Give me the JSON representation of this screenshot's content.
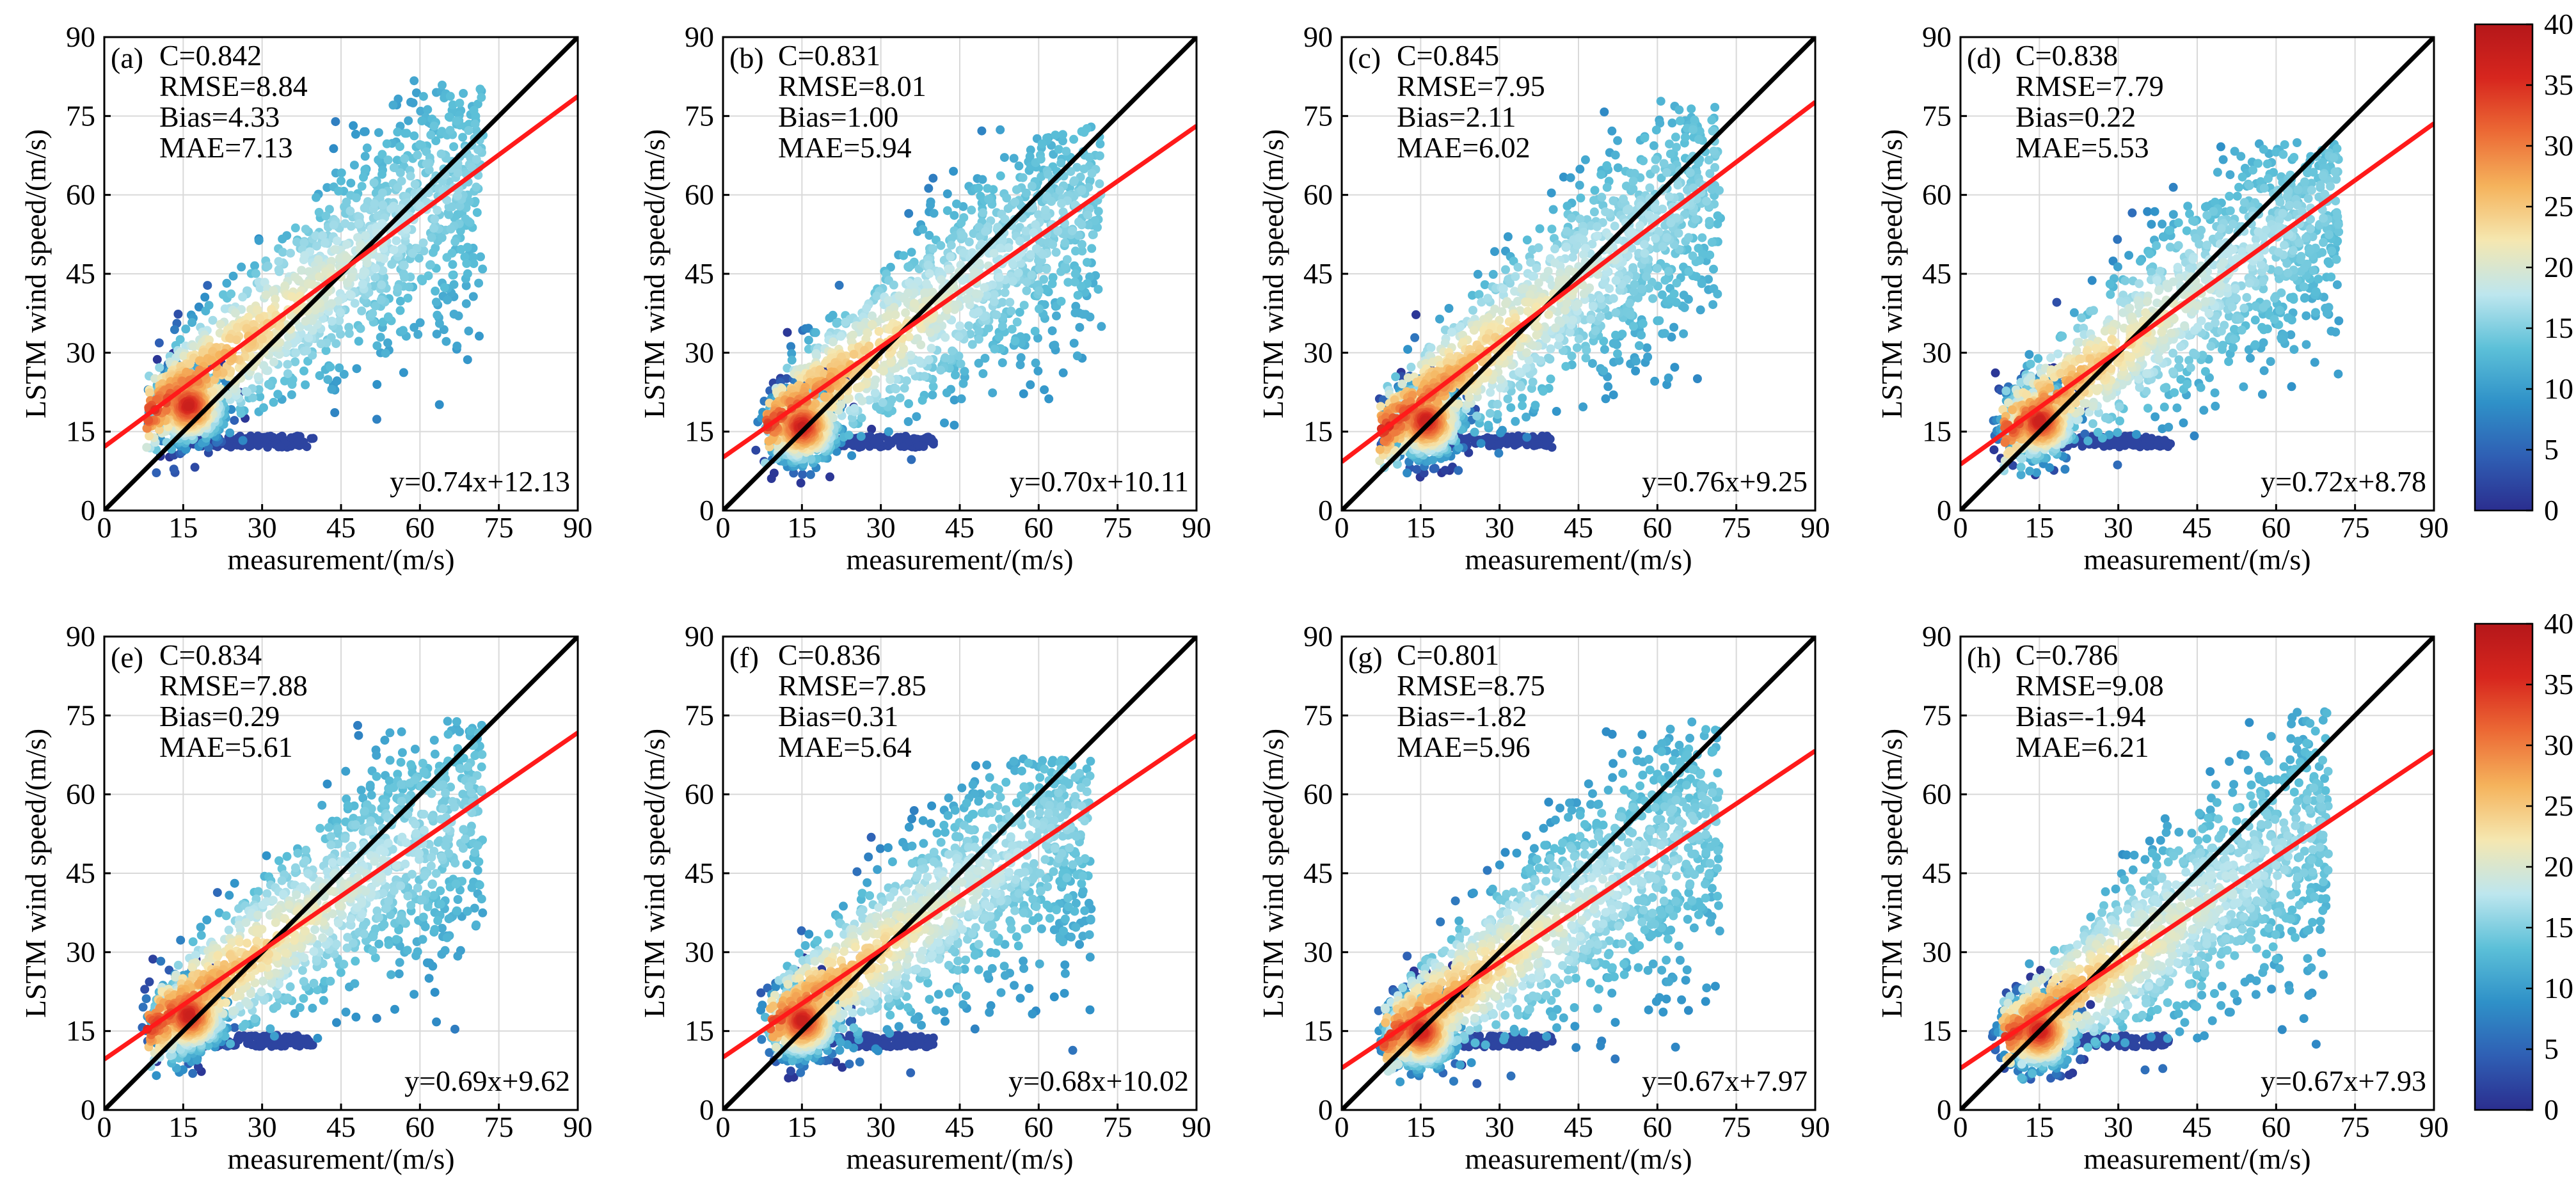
{
  "figure": {
    "colorbar": {
      "ticks": [
        "0",
        "5",
        "10",
        "15",
        "20",
        "25",
        "30",
        "35",
        "40"
      ],
      "min": 0,
      "max": 40,
      "colors": [
        "#2b2e8f",
        "#2f5fb4",
        "#2f91c8",
        "#5cc0d8",
        "#bde6ee",
        "#f5e7b0",
        "#f5b35c",
        "#ec6a35",
        "#d7261e",
        "#b5171a"
      ]
    }
  },
  "chart_data": [
    {
      "type": "scatter",
      "panel": "(a)",
      "stats": {
        "C": "C=0.842",
        "RMSE": "RMSE=8.84",
        "Bias": "Bias=4.33",
        "MAE": "MAE=7.13"
      },
      "fit_label": "y=0.74x+12.13",
      "fit": {
        "slope": 0.74,
        "intercept": 12.13
      },
      "xlabel": "measurement/(m/s)",
      "ylabel": "LSTM wind speed/(m/s)",
      "xlim": [
        0,
        90
      ],
      "ylim": [
        0,
        90
      ],
      "ticks": [
        0,
        15,
        30,
        45,
        60,
        75,
        90
      ],
      "identity_line": true,
      "cloud": {
        "x_range": [
          8,
          72
        ],
        "hot_x": 16,
        "hot_y": 20,
        "y_max": 82,
        "seed": 11
      }
    },
    {
      "type": "scatter",
      "panel": "(b)",
      "stats": {
        "C": "C=0.831",
        "RMSE": "RMSE=8.01",
        "Bias": "Bias=1.00",
        "MAE": "MAE=5.94"
      },
      "fit_label": "y=0.70x+10.11",
      "fit": {
        "slope": 0.7,
        "intercept": 10.11
      },
      "xlabel": "measurement/(m/s)",
      "ylabel": "LSTM wind speed/(m/s)",
      "xlim": [
        0,
        90
      ],
      "ylim": [
        0,
        90
      ],
      "ticks": [
        0,
        15,
        30,
        45,
        60,
        75,
        90
      ],
      "identity_line": true,
      "cloud": {
        "x_range": [
          8,
          72
        ],
        "hot_x": 15,
        "hot_y": 16,
        "y_max": 74,
        "seed": 23
      }
    },
    {
      "type": "scatter",
      "panel": "(c)",
      "stats": {
        "C": "C=0.845",
        "RMSE": "RMSE=7.95",
        "Bias": "Bias=2.11",
        "MAE": "MAE=6.02"
      },
      "fit_label": "y=0.76x+9.25",
      "fit": {
        "slope": 0.76,
        "intercept": 9.25
      },
      "xlabel": "measurement/(m/s)",
      "ylabel": "LSTM wind speed/(m/s)",
      "xlim": [
        0,
        90
      ],
      "ylim": [
        0,
        90
      ],
      "ticks": [
        0,
        15,
        30,
        45,
        60,
        75,
        90
      ],
      "identity_line": true,
      "cloud": {
        "x_range": [
          7,
          72
        ],
        "hot_x": 16,
        "hot_y": 17,
        "y_max": 78,
        "seed": 37
      }
    },
    {
      "type": "scatter",
      "panel": "(d)",
      "stats": {
        "C": "C=0.838",
        "RMSE": "RMSE=7.79",
        "Bias": "Bias=0.22",
        "MAE": "MAE=5.53"
      },
      "fit_label": "y=0.72x+8.78",
      "fit": {
        "slope": 0.72,
        "intercept": 8.78
      },
      "xlabel": "measurement/(m/s)",
      "ylabel": "LSTM wind speed/(m/s)",
      "xlim": [
        0,
        90
      ],
      "ylim": [
        0,
        90
      ],
      "ticks": [
        0,
        15,
        30,
        45,
        60,
        75,
        90
      ],
      "identity_line": true,
      "cloud": {
        "x_range": [
          8,
          72
        ],
        "hot_x": 15,
        "hot_y": 17,
        "y_max": 70,
        "seed": 41
      }
    },
    {
      "type": "scatter",
      "panel": "(e)",
      "stats": {
        "C": "C=0.834",
        "RMSE": "RMSE=7.88",
        "Bias": "Bias=0.29",
        "MAE": "MAE=5.61"
      },
      "fit_label": "y=0.69x+9.62",
      "fit": {
        "slope": 0.69,
        "intercept": 9.62
      },
      "xlabel": "measurement/(m/s)",
      "ylabel": "LSTM wind speed/(m/s)",
      "xlim": [
        0,
        90
      ],
      "ylim": [
        0,
        90
      ],
      "ticks": [
        0,
        15,
        30,
        45,
        60,
        75,
        90
      ],
      "identity_line": true,
      "cloud": {
        "x_range": [
          8,
          72
        ],
        "hot_x": 16,
        "hot_y": 18,
        "y_max": 74,
        "seed": 53
      }
    },
    {
      "type": "scatter",
      "panel": "(f)",
      "stats": {
        "C": "C=0.836",
        "RMSE": "RMSE=7.85",
        "Bias": "Bias=0.31",
        "MAE": "MAE=5.64"
      },
      "fit_label": "y=0.68x+10.02",
      "fit": {
        "slope": 0.68,
        "intercept": 10.02
      },
      "xlabel": "measurement/(m/s)",
      "ylabel": "LSTM wind speed/(m/s)",
      "xlim": [
        0,
        90
      ],
      "ylim": [
        0,
        90
      ],
      "ticks": [
        0,
        15,
        30,
        45,
        60,
        75,
        90
      ],
      "identity_line": true,
      "cloud": {
        "x_range": [
          9,
          70
        ],
        "hot_x": 15,
        "hot_y": 17,
        "y_max": 67,
        "seed": 67
      }
    },
    {
      "type": "scatter",
      "panel": "(g)",
      "stats": {
        "C": "C=0.801",
        "RMSE": "RMSE=8.75",
        "Bias": "Bias=-1.82",
        "MAE": "MAE=5.96"
      },
      "fit_label": "y=0.67x+7.97",
      "fit": {
        "slope": 0.67,
        "intercept": 7.97
      },
      "xlabel": "measurement/(m/s)",
      "ylabel": "LSTM wind speed/(m/s)",
      "xlim": [
        0,
        90
      ],
      "ylim": [
        0,
        90
      ],
      "ticks": [
        0,
        15,
        30,
        45,
        60,
        75,
        90
      ],
      "identity_line": true,
      "cloud": {
        "x_range": [
          8,
          72
        ],
        "hot_x": 15,
        "hot_y": 15,
        "y_max": 74,
        "seed": 79
      }
    },
    {
      "type": "scatter",
      "panel": "(h)",
      "stats": {
        "C": "C=0.786",
        "RMSE": "RMSE=9.08",
        "Bias": "Bias=-1.94",
        "MAE": "MAE=6.21"
      },
      "fit_label": "y=0.67x+7.93",
      "fit": {
        "slope": 0.67,
        "intercept": 7.93
      },
      "xlabel": "measurement/(m/s)",
      "ylabel": "LSTM wind speed/(m/s)",
      "xlim": [
        0,
        90
      ],
      "ylim": [
        0,
        90
      ],
      "ticks": [
        0,
        15,
        30,
        45,
        60,
        75,
        90
      ],
      "identity_line": true,
      "cloud": {
        "x_range": [
          8,
          70
        ],
        "hot_x": 15,
        "hot_y": 15,
        "y_max": 76,
        "seed": 97
      }
    }
  ]
}
